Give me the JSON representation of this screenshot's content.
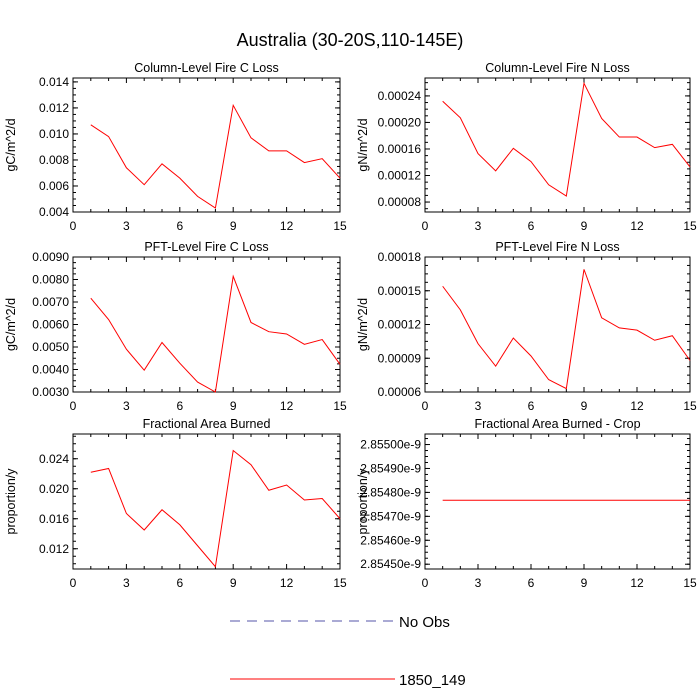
{
  "title": "Australia (30-20S,110-145E)",
  "colors": {
    "obs": "#5555aa",
    "model": "#ff0000",
    "axis": "#000000"
  },
  "legend": {
    "items": [
      {
        "label": "No Obs",
        "style": "dashed",
        "color": "#5555aa"
      },
      {
        "label": "1850_149",
        "style": "solid",
        "color": "#ff0000"
      }
    ]
  },
  "chart_data": [
    {
      "type": "line",
      "title": "Column-Level Fire C Loss",
      "ylabel": "gC/m^2/d",
      "xlim": [
        0,
        15
      ],
      "xticks": [
        0,
        3,
        6,
        9,
        12,
        15
      ],
      "xtick_labels": [
        "0",
        "3",
        "6",
        "9",
        "12",
        "15"
      ],
      "ylim": [
        0.004,
        0.0143
      ],
      "yticks": [
        0.004,
        0.006,
        0.008,
        0.01,
        0.012,
        0.014
      ],
      "ytick_labels": [
        "0.004",
        "0.006",
        "0.008",
        "0.010",
        "0.012",
        "0.014"
      ],
      "series": [
        {
          "name": "1850_149",
          "color": "#ff0000",
          "x": [
            1,
            2,
            3,
            4,
            5,
            6,
            7,
            8,
            9,
            10,
            11,
            12,
            13,
            14,
            15
          ],
          "y": [
            0.0107,
            0.0098,
            0.0074,
            0.0061,
            0.0077,
            0.0066,
            0.0052,
            0.0043,
            0.0122,
            0.0097,
            0.0087,
            0.0087,
            0.0078,
            0.0081,
            0.0066
          ]
        }
      ]
    },
    {
      "type": "line",
      "title": "Column-Level Fire N Loss",
      "ylabel": "gN/m^2/d",
      "xlim": [
        0,
        15
      ],
      "xticks": [
        0,
        3,
        6,
        9,
        12,
        15
      ],
      "xtick_labels": [
        "0",
        "3",
        "6",
        "9",
        "12",
        "15"
      ],
      "ylim": [
        6.5e-05,
        0.000267
      ],
      "yticks": [
        8e-05,
        0.00012,
        0.00016,
        0.0002,
        0.00024
      ],
      "ytick_labels": [
        "0.00008",
        "0.00012",
        "0.00016",
        "0.00020",
        "0.00024"
      ],
      "series": [
        {
          "name": "1850_149",
          "color": "#ff0000",
          "x": [
            1,
            2,
            3,
            4,
            5,
            6,
            7,
            8,
            9,
            10,
            11,
            12,
            13,
            14,
            15
          ],
          "y": [
            0.000232,
            0.000207,
            0.000153,
            0.000127,
            0.000161,
            0.000141,
            0.000106,
            8.9e-05,
            0.000259,
            0.000206,
            0.000178,
            0.000178,
            0.000162,
            0.000167,
            0.000133
          ]
        }
      ]
    },
    {
      "type": "line",
      "title": "PFT-Level Fire C Loss",
      "ylabel": "gC/m^2/d",
      "xlim": [
        0,
        15
      ],
      "xticks": [
        0,
        3,
        6,
        9,
        12,
        15
      ],
      "xtick_labels": [
        "0",
        "3",
        "6",
        "9",
        "12",
        "15"
      ],
      "ylim": [
        0.003,
        0.009
      ],
      "yticks": [
        0.003,
        0.004,
        0.005,
        0.006,
        0.007,
        0.008,
        0.009
      ],
      "ytick_labels": [
        "0.0030",
        "0.0040",
        "0.0050",
        "0.0060",
        "0.0070",
        "0.0080",
        "0.0090"
      ],
      "series": [
        {
          "name": "1850_149",
          "color": "#ff0000",
          "x": [
            1,
            2,
            3,
            4,
            5,
            6,
            7,
            8,
            9,
            10,
            11,
            12,
            13,
            14,
            15
          ],
          "y": [
            0.00717,
            0.00622,
            0.0049,
            0.00397,
            0.0052,
            0.00428,
            0.00344,
            0.003,
            0.00814,
            0.00609,
            0.00568,
            0.00558,
            0.00512,
            0.00533,
            0.00423
          ]
        }
      ]
    },
    {
      "type": "line",
      "title": "PFT-Level Fire N Loss",
      "ylabel": "gN/m^2/d",
      "xlim": [
        0,
        15
      ],
      "xticks": [
        0,
        3,
        6,
        9,
        12,
        15
      ],
      "xtick_labels": [
        "0",
        "3",
        "6",
        "9",
        "12",
        "15"
      ],
      "ylim": [
        6e-05,
        0.00018
      ],
      "yticks": [
        6e-05,
        9e-05,
        0.00012,
        0.00015,
        0.00018
      ],
      "ytick_labels": [
        "0.00006",
        "0.00009",
        "0.00012",
        "0.00015",
        "0.00018"
      ],
      "series": [
        {
          "name": "1850_149",
          "color": "#ff0000",
          "x": [
            1,
            2,
            3,
            4,
            5,
            6,
            7,
            8,
            9,
            10,
            11,
            12,
            13,
            14,
            15
          ],
          "y": [
            0.000154,
            0.000133,
            0.000103,
            8.3e-05,
            0.000108,
            9.2e-05,
            7.1e-05,
            6.3e-05,
            0.000169,
            0.000126,
            0.000117,
            0.000115,
            0.000106,
            0.00011,
            8.8e-05
          ]
        }
      ]
    },
    {
      "type": "line",
      "title": "Fractional Area Burned",
      "ylabel": "proportion/y",
      "xlim": [
        0,
        15
      ],
      "xticks": [
        0,
        3,
        6,
        9,
        12,
        15
      ],
      "xtick_labels": [
        "0",
        "3",
        "6",
        "9",
        "12",
        "15"
      ],
      "ylim": [
        0.0093,
        0.0273
      ],
      "yticks": [
        0.012,
        0.016,
        0.02,
        0.024
      ],
      "ytick_labels": [
        "0.012",
        "0.016",
        "0.020",
        "0.024"
      ],
      "series": [
        {
          "name": "1850_149",
          "color": "#ff0000",
          "x": [
            1,
            2,
            3,
            4,
            5,
            6,
            7,
            8,
            9,
            10,
            11,
            12,
            13,
            14,
            15
          ],
          "y": [
            0.0222,
            0.0227,
            0.0167,
            0.0145,
            0.0172,
            0.0152,
            0.0124,
            0.0096,
            0.0251,
            0.0232,
            0.0198,
            0.0205,
            0.0185,
            0.0187,
            0.016
          ]
        }
      ]
    },
    {
      "type": "line",
      "title": "Fractional Area Burned - Crop",
      "ylabel": "proportion/y",
      "xlim": [
        0,
        15
      ],
      "xticks": [
        0,
        3,
        6,
        9,
        12,
        15
      ],
      "xtick_labels": [
        "0",
        "3",
        "6",
        "9",
        "12",
        "15"
      ],
      "ylim": [
        2.85448e-09,
        2.855044e-09
      ],
      "yticks": [
        2.8545e-09,
        2.8546e-09,
        2.8547e-09,
        2.8548e-09,
        2.8549e-09,
        2.855e-09
      ],
      "ytick_labels": [
        "2.85450e-9",
        "2.85460e-9",
        "2.85470e-9",
        "2.85480e-9",
        "2.85490e-9",
        "2.85500e-9"
      ],
      "series": [
        {
          "name": "1850_149",
          "color": "#ff0000",
          "x": [
            1,
            15
          ],
          "y": [
            2.854767e-09,
            2.854767e-09
          ]
        }
      ]
    }
  ]
}
